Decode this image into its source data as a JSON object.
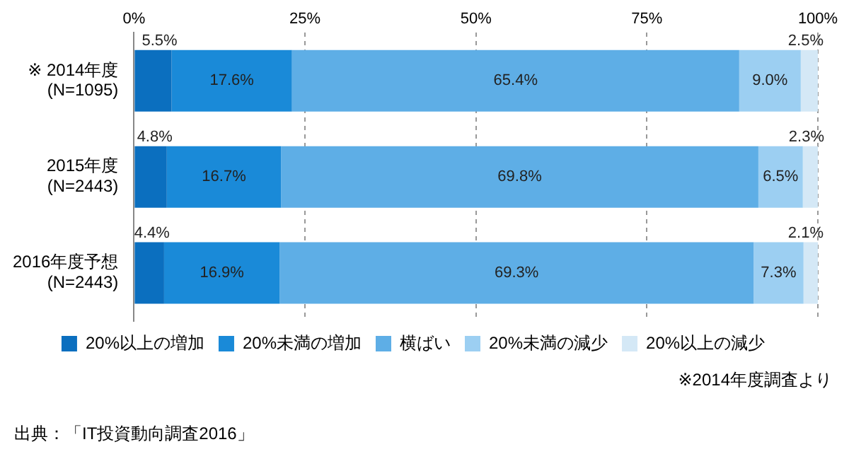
{
  "chart_data": {
    "type": "bar",
    "orientation": "horizontal",
    "stacked": true,
    "categories": [
      "※ 2014年度\n(N=1095)",
      "2015年度\n(N=2443)",
      "2016年度予想\n(N=2443)"
    ],
    "series": [
      {
        "name": "20%以上の増加",
        "color": "#0b6fbf",
        "values": [
          5.5,
          4.8,
          4.4
        ],
        "value_labels": [
          "5.5%",
          "4.8%",
          "4.4%"
        ]
      },
      {
        "name": "20%未満の増加",
        "color": "#1a8ad8",
        "values": [
          17.6,
          16.7,
          16.9
        ],
        "value_labels": [
          "17.6%",
          "16.7%",
          "16.9%"
        ]
      },
      {
        "name": "横ばい",
        "color": "#5eaee6",
        "values": [
          65.4,
          69.8,
          69.3
        ],
        "value_labels": [
          "65.4%",
          "69.8%",
          "69.3%"
        ]
      },
      {
        "name": "20%未満の減少",
        "color": "#9ccff2",
        "values": [
          9.0,
          6.5,
          7.3
        ],
        "value_labels": [
          "9.0%",
          "6.5%",
          "7.3%"
        ]
      },
      {
        "name": "20%以上の減少",
        "color": "#d4e8f6",
        "values": [
          2.5,
          2.3,
          2.1
        ],
        "value_labels": [
          "2.5%",
          "2.3%",
          "2.1%"
        ]
      }
    ],
    "xlim": [
      0,
      100
    ],
    "xticks": [
      {
        "value": 0,
        "label": "0%"
      },
      {
        "value": 25,
        "label": "25%"
      },
      {
        "value": 50,
        "label": "50%"
      },
      {
        "value": 75,
        "label": "75%"
      },
      {
        "value": 100,
        "label": "100%"
      }
    ],
    "grid": "x",
    "legend": "bottom",
    "annotations": [
      "※2014年度調査より",
      "出典：「IT投資動向調査2016」"
    ]
  }
}
